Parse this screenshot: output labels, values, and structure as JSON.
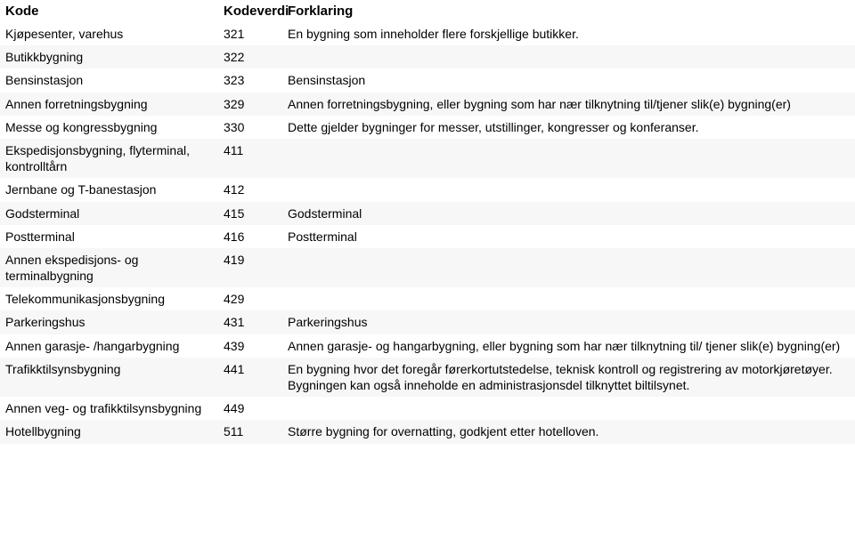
{
  "table": {
    "columns": [
      "Kode",
      "Kodeverdi",
      "Forklaring"
    ],
    "row_stripe_colors": [
      "#ffffff",
      "#f7f7f7"
    ],
    "header_fontsize": 15,
    "cell_fontsize": 14,
    "text_color": "#000000",
    "rows": [
      {
        "kode": "Kjøpesenter, varehus",
        "kodeverdi": "321",
        "forklaring": "En bygning som inneholder flere forskjellige butikker."
      },
      {
        "kode": "Butikkbygning",
        "kodeverdi": "322",
        "forklaring": ""
      },
      {
        "kode": "Bensinstasjon",
        "kodeverdi": "323",
        "forklaring": "Bensinstasjon"
      },
      {
        "kode": "Annen forretningsbygning",
        "kodeverdi": "329",
        "forklaring": "Annen forretningsbygning, eller bygning som har nær tilknytning til/tjener slik(e) bygning(er)"
      },
      {
        "kode": "Messe og kongressbygning",
        "kodeverdi": "330",
        "forklaring": "Dette gjelder bygninger for messer, utstillinger, kongresser og konferanser."
      },
      {
        "kode": "Ekspedisjonsbygning, flyterminal, kontrolltårn",
        "kodeverdi": "411",
        "forklaring": ""
      },
      {
        "kode": "Jernbane og T-banestasjon",
        "kodeverdi": "412",
        "forklaring": ""
      },
      {
        "kode": "Godsterminal",
        "kodeverdi": "415",
        "forklaring": "Godsterminal"
      },
      {
        "kode": "Postterminal",
        "kodeverdi": "416",
        "forklaring": "Postterminal"
      },
      {
        "kode": "Annen ekspedisjons- og terminalbygning",
        "kodeverdi": "419",
        "forklaring": ""
      },
      {
        "kode": "Telekommunikasjonsbygning",
        "kodeverdi": "429",
        "forklaring": ""
      },
      {
        "kode": "Parkeringshus",
        "kodeverdi": "431",
        "forklaring": "Parkeringshus"
      },
      {
        "kode": "Annen garasje- /hangarbygning",
        "kodeverdi": "439",
        "forklaring": "Annen garasje- og hangarbygning, eller bygning som har nær tilknytning til/ tjener slik(e) bygning(er)"
      },
      {
        "kode": "Trafikktilsynsbygning",
        "kodeverdi": "441",
        "forklaring": "En bygning hvor det foregår førerkortutstedelse, teknisk kontroll og registrering av motorkjøretøyer. Bygningen kan også inneholde en administrasjonsdel tilknyttet biltilsynet."
      },
      {
        "kode": "Annen veg- og trafikktilsynsbygning",
        "kodeverdi": "449",
        "forklaring": ""
      },
      {
        "kode": "Hotellbygning",
        "kodeverdi": "511",
        "forklaring": "Større bygning for overnatting, godkjent etter hotelloven."
      }
    ]
  }
}
